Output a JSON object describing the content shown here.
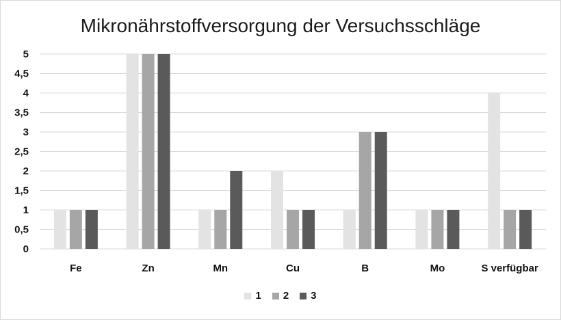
{
  "chart_data": {
    "type": "bar",
    "title": "Mikronährstoffversorgung der Versuchsschläge",
    "xlabel": "",
    "ylabel": "",
    "categories": [
      "Fe",
      "Zn",
      "Mn",
      "Cu",
      "B",
      "Mo",
      "S verfügbar"
    ],
    "ylim": [
      0,
      5
    ],
    "yticks": [
      "0",
      "0,5",
      "1",
      "1,5",
      "2",
      "2,5",
      "3",
      "3,5",
      "4",
      "4,5",
      "5"
    ],
    "grid": true,
    "legend_position": "bottom",
    "series": [
      {
        "name": "1",
        "color": "#e3e3e3",
        "values": [
          1,
          5,
          1,
          2,
          1,
          1,
          4
        ]
      },
      {
        "name": "2",
        "color": "#a6a6a6",
        "values": [
          1,
          5,
          1,
          1,
          3,
          1,
          1
        ]
      },
      {
        "name": "3",
        "color": "#5a5a5a",
        "values": [
          1,
          5,
          2,
          1,
          3,
          1,
          1
        ]
      }
    ]
  }
}
